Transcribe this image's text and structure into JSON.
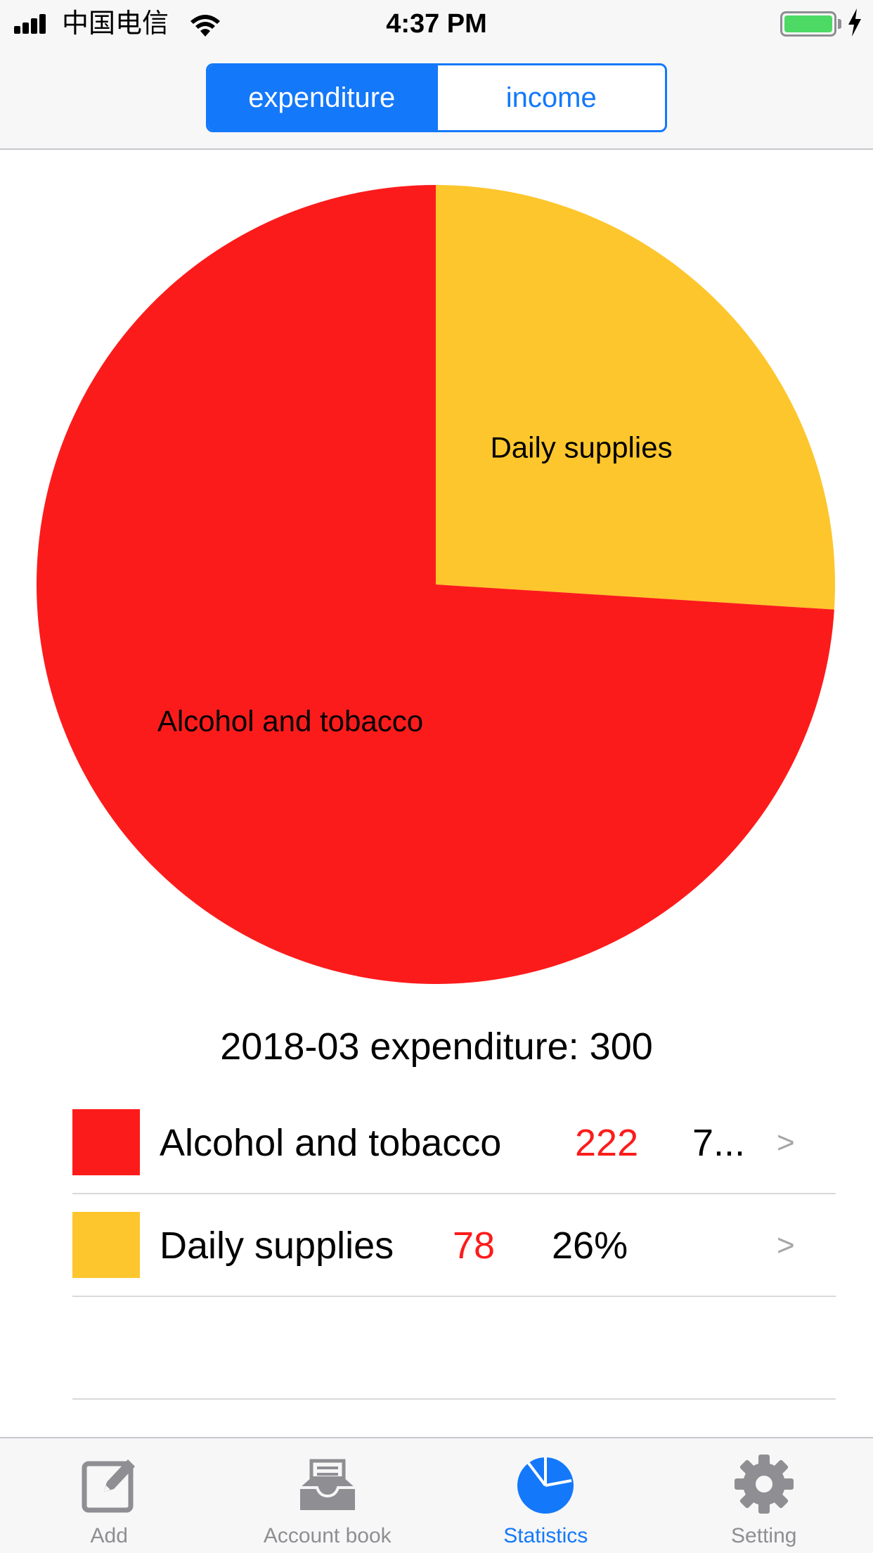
{
  "status_bar": {
    "carrier": "中国电信",
    "time": "4:37 PM"
  },
  "segment_control": {
    "options": [
      "expenditure",
      "income"
    ],
    "selected": "expenditure"
  },
  "chart_data": {
    "type": "pie",
    "categories": [
      "Alcohol and tobacco",
      "Daily supplies"
    ],
    "values": [
      222,
      78
    ],
    "colors": [
      "#fc1b1b",
      "#fdc62c"
    ],
    "start_angle": "top, clockwise: Daily supplies then Alcohol and tobacco"
  },
  "summary": {
    "month": "2018-03",
    "label": "expenditure:",
    "total": "300"
  },
  "categories": [
    {
      "name": "Alcohol and tobacco",
      "amount": "222",
      "percent": "7...",
      "color": "#fc1b1b",
      "arrow": ">"
    },
    {
      "name": "Daily supplies",
      "amount": "78",
      "percent": "26%",
      "color": "#fdc62c",
      "arrow": ">"
    }
  ],
  "tab_bar": {
    "tabs": [
      {
        "label": "Add",
        "icon": "edit-icon"
      },
      {
        "label": "Account book",
        "icon": "inbox-tray-icon"
      },
      {
        "label": "Statistics",
        "icon": "pie-chart-icon"
      },
      {
        "label": "Setting",
        "icon": "gear-icon"
      }
    ],
    "active": "Statistics"
  },
  "colors": {
    "accent": "#1478fa",
    "amount_red": "#fc1b1b",
    "inactive_tab": "#8e8e93"
  }
}
